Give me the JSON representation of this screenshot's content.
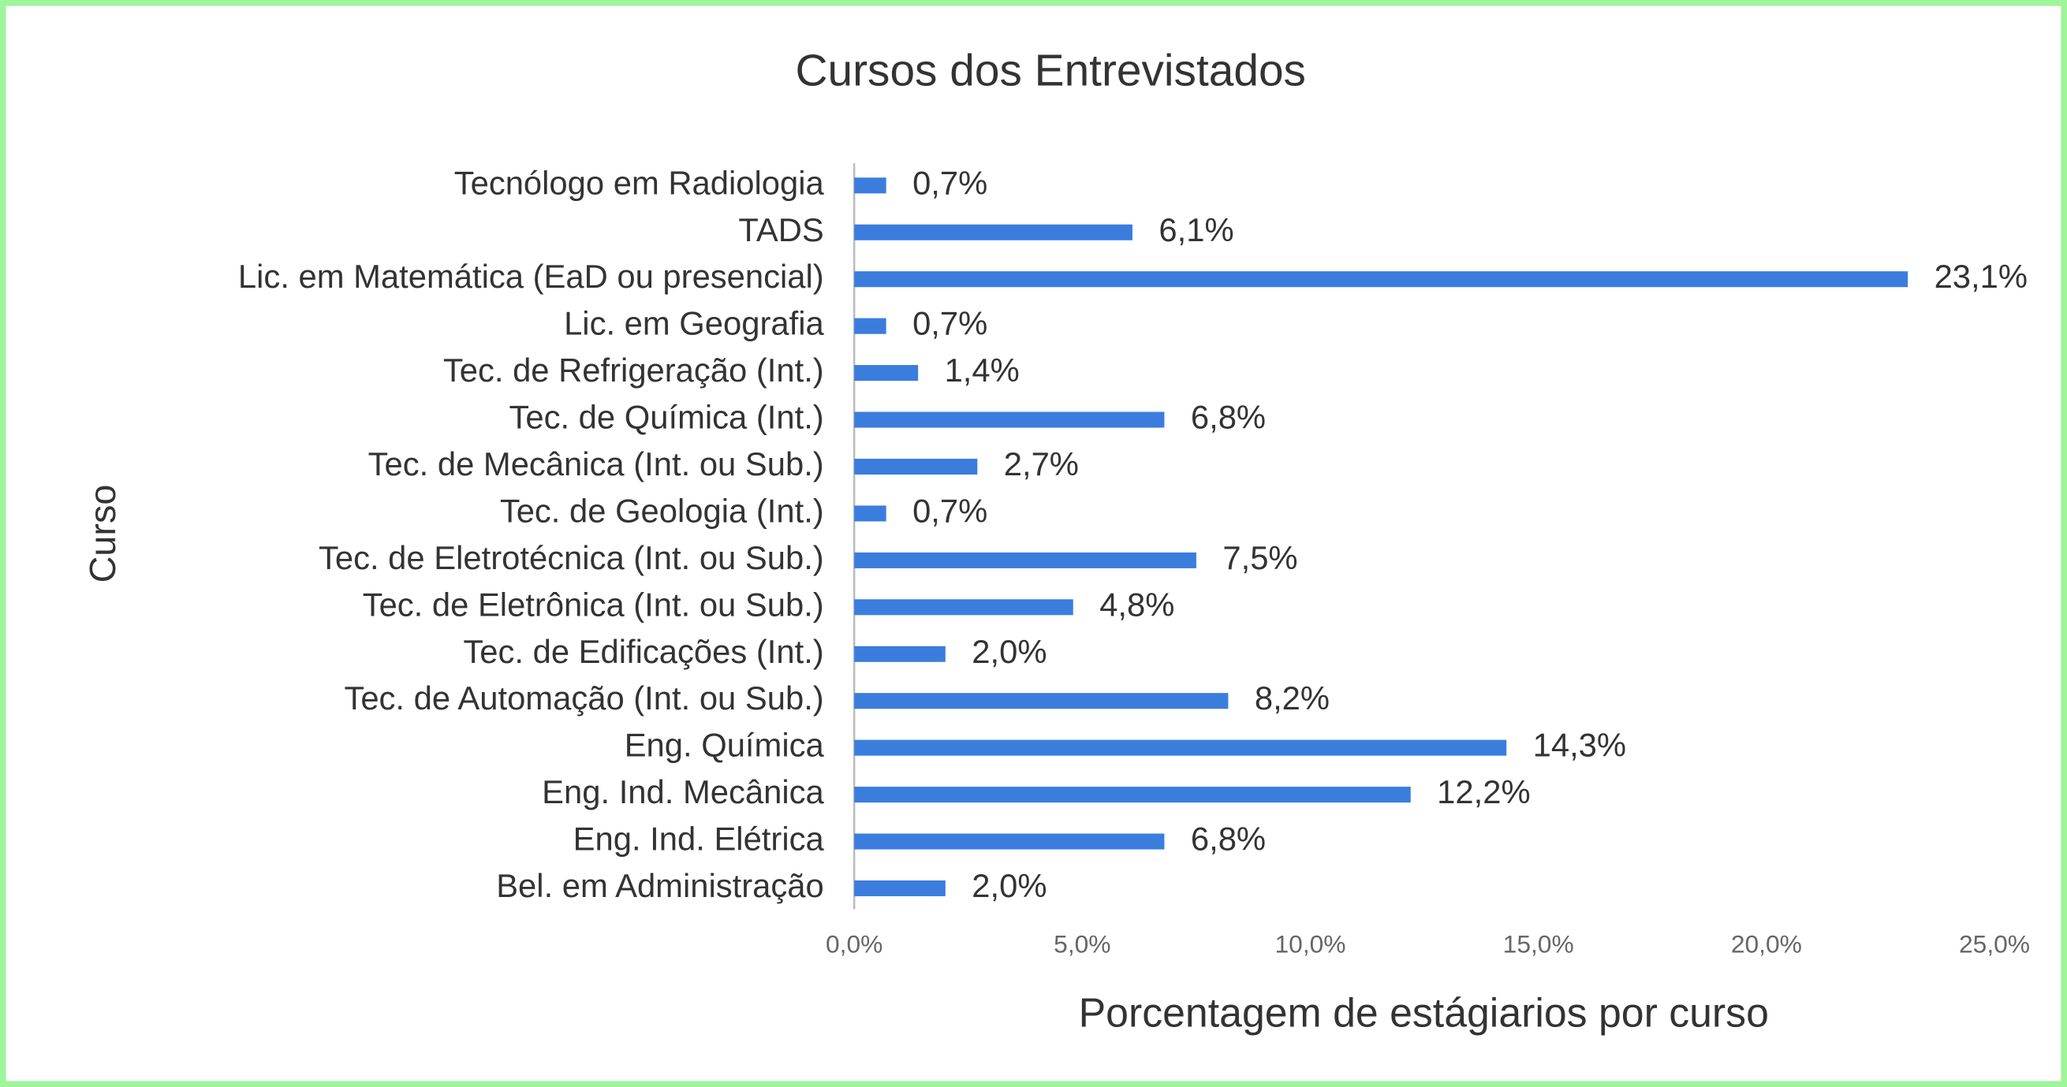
{
  "chart_data": {
    "type": "bar",
    "orientation": "horizontal",
    "title": "Cursos dos Entrevistados",
    "x_label": "Porcentagem de estágiarios por curso",
    "y_label": "Curso",
    "categories": [
      "Tecnólogo em Radiologia",
      "TADS",
      "Lic. em Matemática (EaD ou presencial)",
      "Lic. em Geografia",
      "Tec. de Refrigeração (Int.)",
      "Tec. de Química (Int.)",
      "Tec. de Mecânica (Int. ou Sub.)",
      "Tec. de Geologia (Int.)",
      "Tec. de Eletrotécnica (Int. ou Sub.)",
      "Tec. de Eletrônica (Int. ou Sub.)",
      "Tec. de Edificações (Int.)",
      "Tec. de Automação (Int. ou Sub.)",
      "Eng. Química",
      "Eng. Ind. Mecânica",
      "Eng. Ind. Elétrica",
      "Bel. em Administração"
    ],
    "values": [
      0.7,
      6.1,
      23.1,
      0.7,
      1.4,
      6.8,
      2.7,
      0.7,
      7.5,
      4.8,
      2.0,
      8.2,
      14.3,
      12.2,
      6.8,
      2.0
    ],
    "value_labels": [
      "0,7%",
      "6,1%",
      "23,1%",
      "0,7%",
      "1,4%",
      "6,8%",
      "2,7%",
      "0,7%",
      "7,5%",
      "4,8%",
      "2,0%",
      "8,2%",
      "14,3%",
      "12,2%",
      "6,8%",
      "2,0%"
    ],
    "color": "#3b7ddd",
    "xlim": [
      0,
      25
    ],
    "xticks": [
      {
        "value": 0,
        "label": "0,0%"
      },
      {
        "value": 5,
        "label": "5,0%"
      },
      {
        "value": 10,
        "label": "10,0%"
      },
      {
        "value": 15,
        "label": "15,0%"
      },
      {
        "value": 20,
        "label": "20,0%"
      },
      {
        "value": 25,
        "label": "25,0%"
      }
    ],
    "grid": false
  }
}
